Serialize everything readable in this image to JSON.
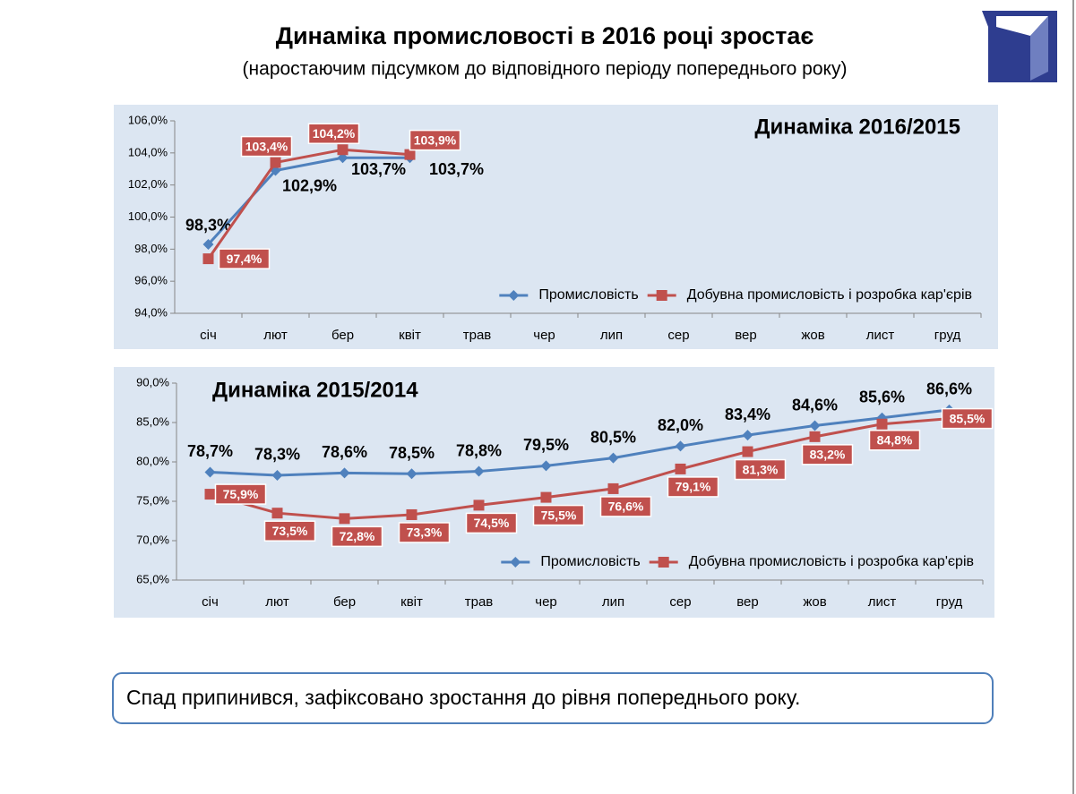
{
  "header": {
    "title": "Динаміка промисловості в 2016 році зростає",
    "subtitle": "(наростаючим підсумком до відповідного періоду попереднього року)"
  },
  "chart_data": [
    {
      "type": "line",
      "title": "Динаміка 2016/2015",
      "categories": [
        "січ",
        "лют",
        "бер",
        "квіт",
        "трав",
        "чер",
        "лип",
        "сер",
        "вер",
        "жов",
        "лист",
        "груд"
      ],
      "series": [
        {
          "name": "Промисловість",
          "color": "#4f81bd",
          "values": [
            98.3,
            102.9,
            103.7,
            103.7,
            null,
            null,
            null,
            null,
            null,
            null,
            null,
            null
          ],
          "value_labels": [
            "98,3%",
            "102,9%",
            "103,7%",
            "103,7%",
            null,
            null,
            null,
            null,
            null,
            null,
            null,
            null
          ]
        },
        {
          "name": "Добувна промисловість і розробка кар'єрів",
          "color": "#c0504d",
          "values": [
            97.4,
            103.4,
            104.2,
            103.9,
            null,
            null,
            null,
            null,
            null,
            null,
            null,
            null
          ],
          "value_labels": [
            "97,4%",
            "103,4%",
            "104,2%",
            "103,9%",
            null,
            null,
            null,
            null,
            null,
            null,
            null,
            null
          ]
        }
      ],
      "ylim": [
        94,
        106
      ],
      "yticks": [
        {
          "value": 94,
          "label": "94,0%"
        },
        {
          "value": 96,
          "label": "96,0%"
        },
        {
          "value": 98,
          "label": "98,0%"
        },
        {
          "value": 100,
          "label": "100,0%"
        },
        {
          "value": 102,
          "label": "102,0%"
        },
        {
          "value": 104,
          "label": "104,0%"
        },
        {
          "value": 106,
          "label": "106,0%"
        }
      ],
      "legend": "lower right"
    },
    {
      "type": "line",
      "title": "Динаміка 2015/2014",
      "categories": [
        "січ",
        "лют",
        "бер",
        "квіт",
        "трав",
        "чер",
        "лип",
        "сер",
        "вер",
        "жов",
        "лист",
        "груд"
      ],
      "series": [
        {
          "name": "Промисловість",
          "color": "#4f81bd",
          "values": [
            78.7,
            78.3,
            78.6,
            78.5,
            78.8,
            79.5,
            80.5,
            82.0,
            83.4,
            84.6,
            85.6,
            86.6
          ],
          "value_labels": [
            "78,7%",
            "78,3%",
            "78,6%",
            "78,5%",
            "78,8%",
            "79,5%",
            "80,5%",
            "82,0%",
            "83,4%",
            "84,6%",
            "85,6%",
            "86,6%"
          ]
        },
        {
          "name": "Добувна промисловість і розробка кар'єрів",
          "color": "#c0504d",
          "values": [
            75.9,
            73.5,
            72.8,
            73.3,
            74.5,
            75.5,
            76.6,
            79.1,
            81.3,
            83.2,
            84.8,
            85.5
          ],
          "value_labels": [
            "75,9%",
            "73,5%",
            "72,8%",
            "73,3%",
            "74,5%",
            "75,5%",
            "76,6%",
            "79,1%",
            "81,3%",
            "83,2%",
            "84,8%",
            "85,5%"
          ]
        }
      ],
      "ylim": [
        65,
        90
      ],
      "yticks": [
        {
          "value": 65,
          "label": "65,0%"
        },
        {
          "value": 70,
          "label": "70,0%"
        },
        {
          "value": 75,
          "label": "75,0%"
        },
        {
          "value": 80,
          "label": "80,0%"
        },
        {
          "value": 85,
          "label": "85,0%"
        },
        {
          "value": 90,
          "label": "90,0%"
        }
      ],
      "legend": "lower right"
    }
  ],
  "footer": {
    "text": "Спад припинився, зафіксовано зростання до рівня попереднього року."
  }
}
